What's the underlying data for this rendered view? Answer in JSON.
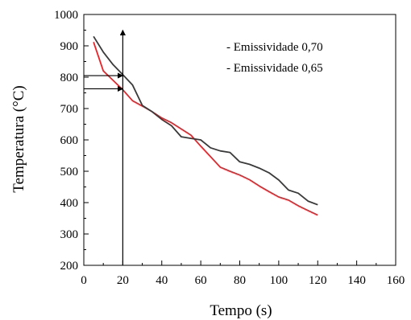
{
  "chart_data": {
    "type": "line",
    "xlabel": "Tempo (s)",
    "ylabel": "Temperatura (°C)",
    "xlim": [
      0,
      160
    ],
    "ylim": [
      200,
      1000
    ],
    "xticks": [
      0,
      20,
      40,
      60,
      80,
      100,
      120,
      140,
      160
    ],
    "yticks": [
      200,
      300,
      400,
      500,
      600,
      700,
      800,
      900,
      1000
    ],
    "grid": false,
    "legend_position": "top-right",
    "series": [
      {
        "name": "- Emissividade 0,70",
        "color": "#e8252a",
        "x": [
          5,
          10,
          15,
          20,
          25,
          30,
          35,
          40,
          45,
          50,
          55,
          60,
          65,
          70,
          75,
          80,
          85,
          90,
          95,
          100,
          105,
          110,
          115,
          120
        ],
        "y": [
          912,
          820,
          790,
          760,
          725,
          708,
          690,
          670,
          655,
          635,
          615,
          580,
          547,
          513,
          500,
          488,
          473,
          453,
          435,
          418,
          408,
          390,
          375,
          360
        ]
      },
      {
        "name": "- Emissividade 0,65",
        "color": "#3a3a3a",
        "x": [
          5,
          10,
          15,
          20,
          25,
          30,
          35,
          40,
          45,
          50,
          55,
          60,
          65,
          70,
          75,
          80,
          85,
          90,
          95,
          100,
          105,
          110,
          115,
          120
        ],
        "y": [
          930,
          880,
          840,
          808,
          775,
          710,
          690,
          665,
          645,
          610,
          605,
          600,
          575,
          565,
          560,
          530,
          522,
          510,
          495,
          472,
          440,
          430,
          405,
          393
        ]
      }
    ],
    "annotations": [
      {
        "type": "vertical-arrow",
        "x": 20,
        "y_from": 200,
        "y_to": 950
      },
      {
        "type": "horizontal-arrow",
        "y": 805,
        "x_from": 0,
        "x_to": 20
      },
      {
        "type": "horizontal-arrow",
        "y": 763,
        "x_from": 0,
        "x_to": 20
      }
    ]
  }
}
